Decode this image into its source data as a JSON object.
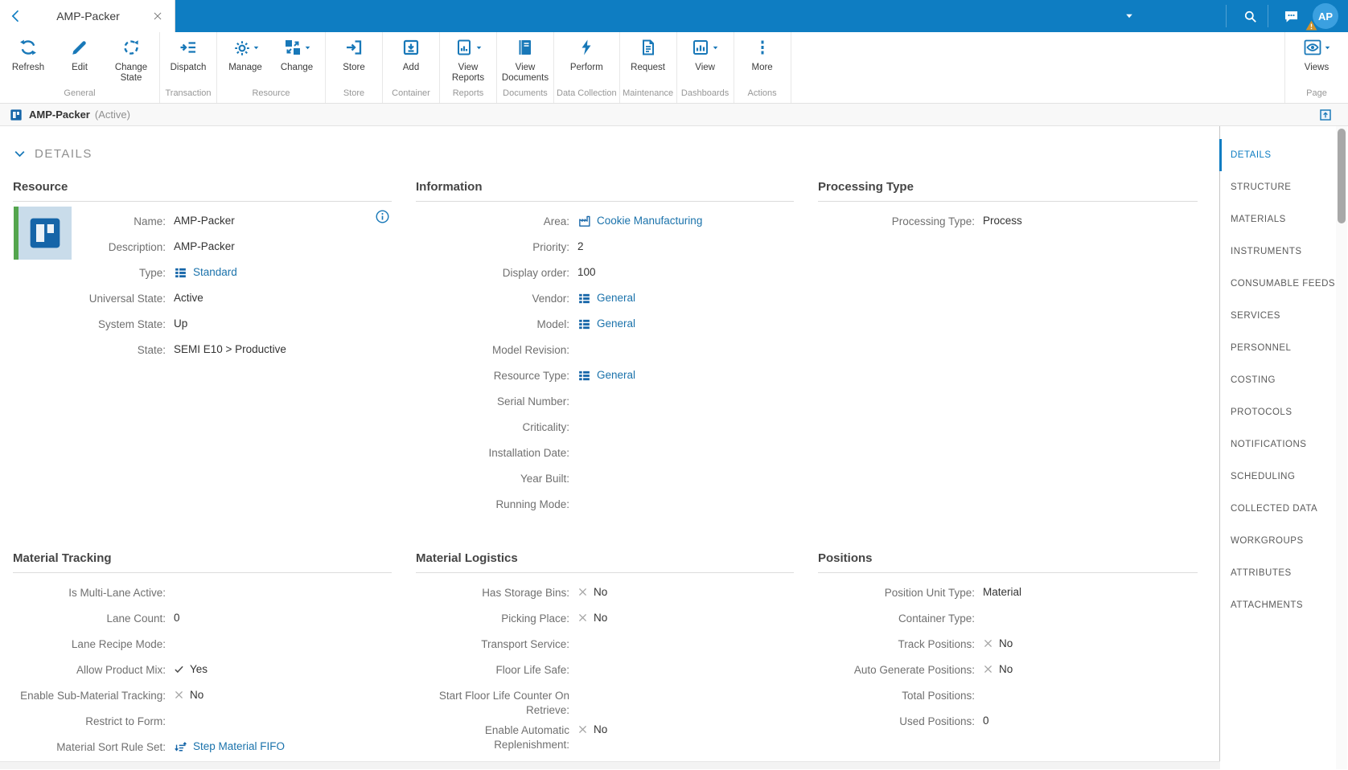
{
  "colors": {
    "primary": "#0e7dc2",
    "toolbar_icon": "#1878b8",
    "link": "#1a72ab",
    "active_green": "#54a54e",
    "warning": "#d0922b"
  },
  "topbar": {
    "back_icon": "chevron-left-icon",
    "tab": {
      "title": "AMP-Packer",
      "close_icon": "close-icon"
    },
    "right_icons": [
      "caret-down-icon",
      "search-icon",
      "messages-icon"
    ],
    "avatar": {
      "initials": "AP",
      "badge_icon": "warning-triangle-icon"
    }
  },
  "toolbar": {
    "groups": [
      {
        "name": "General",
        "buttons": [
          {
            "label": "Refresh",
            "icon": "refresh-icon"
          },
          {
            "label": "Edit",
            "icon": "pencil-icon"
          },
          {
            "label": "Change\nState",
            "icon": "change-state-icon"
          }
        ]
      },
      {
        "name": "Transaction",
        "buttons": [
          {
            "label": "Dispatch",
            "icon": "dispatch-icon"
          }
        ]
      },
      {
        "name": "Resource",
        "buttons": [
          {
            "label": "Manage",
            "icon": "manage-gear-icon",
            "dropdown": true
          },
          {
            "label": "Change",
            "icon": "change-swap-icon",
            "dropdown": true
          }
        ]
      },
      {
        "name": "Store",
        "buttons": [
          {
            "label": "Store",
            "icon": "store-icon"
          }
        ]
      },
      {
        "name": "Container",
        "buttons": [
          {
            "label": "Add",
            "icon": "add-container-icon"
          }
        ]
      },
      {
        "name": "Reports",
        "buttons": [
          {
            "label": "View\nReports",
            "icon": "report-icon",
            "dropdown": true
          }
        ]
      },
      {
        "name": "Documents",
        "buttons": [
          {
            "label": "View\nDocuments",
            "icon": "document-icon"
          }
        ]
      },
      {
        "name": "Data Collection",
        "buttons": [
          {
            "label": "Perform",
            "icon": "lightning-icon"
          }
        ]
      },
      {
        "name": "Maintenance",
        "buttons": [
          {
            "label": "Request",
            "icon": "request-icon"
          }
        ]
      },
      {
        "name": "Dashboards",
        "buttons": [
          {
            "label": "View",
            "icon": "dashboard-icon",
            "dropdown": true
          }
        ]
      },
      {
        "name": "Actions",
        "buttons": [
          {
            "label": "More",
            "icon": "more-ellipsis-icon"
          }
        ]
      }
    ],
    "page_group": {
      "name": "Page",
      "buttons": [
        {
          "label": "Views",
          "icon": "eye-icon",
          "dropdown": true
        }
      ]
    },
    "caret_icon": "caret-down-icon"
  },
  "entity_bar": {
    "icon": "resource-icon",
    "title": "AMP-Packer",
    "state": "(Active)",
    "action_icon": "popout-icon"
  },
  "details_panel": {
    "header": "DETAILS",
    "collapse_icon": "chevron-down-icon"
  },
  "sections": {
    "resource": {
      "title": "Resource",
      "has_thumbnail": true,
      "thumbnail_icon": "resource-icon",
      "info_icon": "info-icon",
      "fields": [
        {
          "label": "Name:",
          "value": "AMP-Packer",
          "type": "text"
        },
        {
          "label": "Description:",
          "value": "AMP-Packer",
          "type": "text"
        },
        {
          "label": "Type:",
          "value": "Standard",
          "type": "link",
          "icon": "entity-list-icon"
        },
        {
          "label": "Universal State:",
          "value": "Active",
          "type": "text"
        },
        {
          "label": "System State:",
          "value": "Up",
          "type": "text"
        },
        {
          "label": "State:",
          "value": "SEMI E10 > Productive",
          "type": "text"
        }
      ]
    },
    "information": {
      "title": "Information",
      "fields": [
        {
          "label": "Area:",
          "value": "Cookie Manufacturing",
          "type": "link",
          "icon": "factory-icon"
        },
        {
          "label": "Priority:",
          "value": "2",
          "type": "text"
        },
        {
          "label": "Display order:",
          "value": "100",
          "type": "text"
        },
        {
          "label": "Vendor:",
          "value": "General",
          "type": "link",
          "icon": "entity-list-icon"
        },
        {
          "label": "Model:",
          "value": "General",
          "type": "link",
          "icon": "entity-list-icon"
        },
        {
          "label": "Model Revision:",
          "value": "",
          "type": "text"
        },
        {
          "label": "Resource Type:",
          "value": "General",
          "type": "link",
          "icon": "entity-list-icon"
        },
        {
          "label": "Serial Number:",
          "value": "",
          "type": "text"
        },
        {
          "label": "Criticality:",
          "value": "",
          "type": "text"
        },
        {
          "label": "Installation Date:",
          "value": "",
          "type": "text"
        },
        {
          "label": "Year Built:",
          "value": "",
          "type": "text"
        },
        {
          "label": "Running Mode:",
          "value": "",
          "type": "text"
        }
      ]
    },
    "processing_type": {
      "title": "Processing Type",
      "fields": [
        {
          "label": "Processing Type:",
          "value": "Process",
          "type": "text"
        }
      ]
    },
    "material_tracking": {
      "title": "Material Tracking",
      "fields": [
        {
          "label": "Is Multi-Lane Active:",
          "value": "",
          "type": "text"
        },
        {
          "label": "Lane Count:",
          "value": "0",
          "type": "text"
        },
        {
          "label": "Lane Recipe Mode:",
          "value": "",
          "type": "text"
        },
        {
          "label": "Allow Product Mix:",
          "value": "Yes",
          "type": "yes",
          "icon": "check-icon"
        },
        {
          "label": "Enable Sub-Material Tracking:",
          "value": "No",
          "type": "no",
          "icon": "cross-icon"
        },
        {
          "label": "Restrict to Form:",
          "value": "",
          "type": "text"
        },
        {
          "label": "Material Sort Rule Set:",
          "value": "Step Material FIFO",
          "type": "link",
          "icon": "sort-rule-icon"
        }
      ]
    },
    "material_logistics": {
      "title": "Material Logistics",
      "fields": [
        {
          "label": "Has Storage Bins:",
          "value": "No",
          "type": "no",
          "icon": "cross-icon"
        },
        {
          "label": "Picking Place:",
          "value": "No",
          "type": "no",
          "icon": "cross-icon"
        },
        {
          "label": "Transport Service:",
          "value": "",
          "type": "text"
        },
        {
          "label": "Floor Life Safe:",
          "value": "",
          "type": "text"
        },
        {
          "label": "Start Floor Life Counter On Retrieve:",
          "value": "",
          "type": "text"
        },
        {
          "label": "Enable Automatic Replenishment:",
          "value": "No",
          "type": "no",
          "icon": "cross-icon"
        }
      ]
    },
    "positions": {
      "title": "Positions",
      "fields": [
        {
          "label": "Position Unit Type:",
          "value": "Material",
          "type": "text"
        },
        {
          "label": "Container Type:",
          "value": "",
          "type": "text"
        },
        {
          "label": "Track Positions:",
          "value": "No",
          "type": "no",
          "icon": "cross-icon"
        },
        {
          "label": "Auto Generate Positions:",
          "value": "No",
          "type": "no",
          "icon": "cross-icon"
        },
        {
          "label": "Total Positions:",
          "value": "",
          "type": "text"
        },
        {
          "label": "Used Positions:",
          "value": "0",
          "type": "text"
        }
      ]
    }
  },
  "sidebar": {
    "items": [
      {
        "label": "DETAILS",
        "active": true
      },
      {
        "label": "STRUCTURE"
      },
      {
        "label": "MATERIALS"
      },
      {
        "label": "INSTRUMENTS"
      },
      {
        "label": "CONSUMABLE FEEDS"
      },
      {
        "label": "SERVICES"
      },
      {
        "label": "PERSONNEL"
      },
      {
        "label": "COSTING"
      },
      {
        "label": "PROTOCOLS"
      },
      {
        "label": "NOTIFICATIONS"
      },
      {
        "label": "SCHEDULING"
      },
      {
        "label": "COLLECTED DATA"
      },
      {
        "label": "WORKGROUPS"
      },
      {
        "label": "ATTRIBUTES"
      },
      {
        "label": "ATTACHMENTS"
      }
    ]
  }
}
